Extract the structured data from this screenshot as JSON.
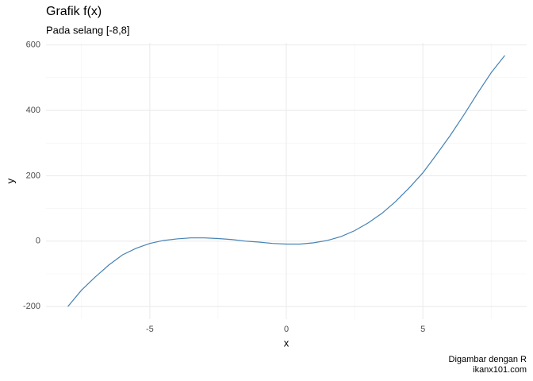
{
  "chart_data": {
    "type": "line",
    "title": "Grafik f(x)",
    "subtitle": "Pada selang [-8,8]",
    "x_label": "x",
    "y_label": "y",
    "caption": [
      "Digambar dengan R",
      "ikanx101.com"
    ],
    "x": [
      -8,
      -7.5,
      -7,
      -6.5,
      -6,
      -5.5,
      -5,
      -4.5,
      -4,
      -3.5,
      -3,
      -2.5,
      -2,
      -1.5,
      -1,
      -0.5,
      0,
      0.5,
      1,
      1.5,
      2,
      2.5,
      3,
      3.5,
      4,
      4.5,
      5,
      5.5,
      6,
      6.5,
      7,
      7.5,
      8
    ],
    "series": [
      {
        "color": "#4682b4",
        "values": [
          -200,
          -150,
          -110,
          -73,
          -42,
          -22,
          -7,
          2,
          7,
          10,
          10,
          8,
          5,
          0,
          -3,
          -7,
          -9,
          -9,
          -5,
          2,
          14,
          32,
          56,
          85,
          121,
          163,
          209,
          265,
          323,
          386,
          452,
          515,
          568
        ]
      }
    ],
    "xlim": [
      -8.8,
      8.8
    ],
    "ylim": [
      -238.4,
      606.4
    ],
    "xticks": [
      -5,
      0,
      5
    ],
    "yticks": [
      -200,
      0,
      200,
      400,
      600
    ],
    "x_minor_ticks": [
      -7.5,
      -2.5,
      2.5,
      7.5
    ],
    "y_minor_ticks": [
      -100,
      100,
      300,
      500
    ],
    "grid": true
  }
}
